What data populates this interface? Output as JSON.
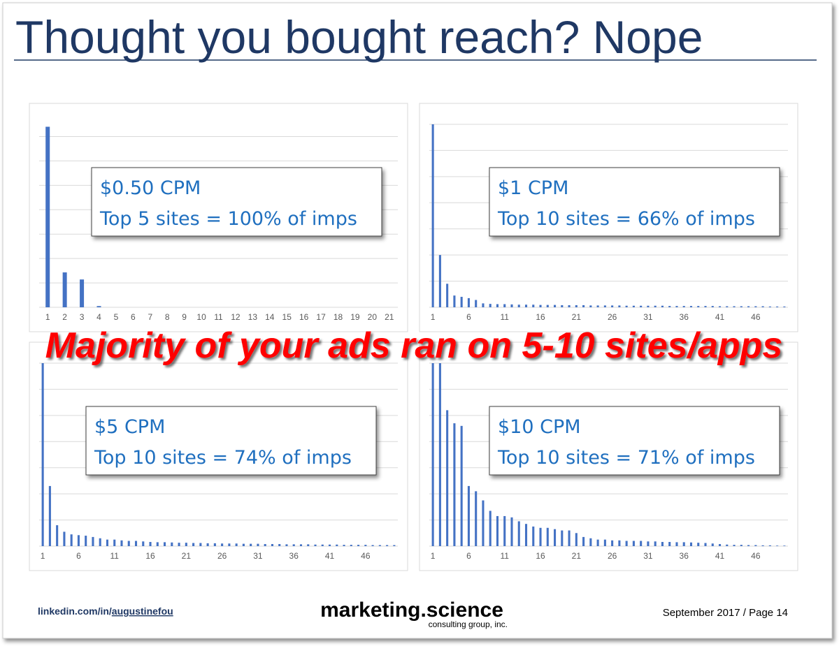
{
  "title": "Thought you bought reach? Nope",
  "banner": "Majority of your ads ran on 5-10 sites/apps",
  "footer": {
    "linkedin_prefix": "linkedin.com/in/",
    "linkedin_handle": "augustinefou",
    "brand": "marketing.science",
    "brand_sub": "consulting group, inc.",
    "page": "September 2017 / Page 14"
  },
  "chart_data": [
    {
      "type": "bar",
      "annotations": [
        "$0.50 CPM",
        "Top 5 sites = 100% of imps"
      ],
      "categories": [
        "1",
        "2",
        "3",
        "4",
        "5",
        "6",
        "7",
        "8",
        "9",
        "10",
        "11",
        "12",
        "13",
        "14",
        "15",
        "16",
        "17",
        "18",
        "19",
        "20",
        "21"
      ],
      "values": [
        7.4,
        1.43,
        1.14,
        0.05,
        0,
        0,
        0,
        0,
        0,
        0,
        0,
        0,
        0,
        0,
        0,
        0,
        0,
        0,
        0,
        0,
        0
      ],
      "color": "#4472c4",
      "ylim": [
        0,
        7.5
      ],
      "yticks": [
        0,
        1,
        2,
        3,
        4,
        5,
        6,
        7
      ],
      "grid": true
    },
    {
      "type": "bar",
      "annotations": [
        "$1 CPM",
        "Top 10 sites = 66% of imps"
      ],
      "categories": [
        "1",
        null,
        null,
        null,
        null,
        "6",
        null,
        null,
        null,
        null,
        "11",
        null,
        null,
        null,
        null,
        "16",
        null,
        null,
        null,
        null,
        "21",
        null,
        null,
        null,
        null,
        "26",
        null,
        null,
        null,
        null,
        "31",
        null,
        null,
        null,
        null,
        "36",
        null,
        null,
        null,
        null,
        "41",
        null,
        null,
        null,
        null,
        "46",
        null,
        null,
        null,
        null
      ],
      "values": [
        7.0,
        2.0,
        0.9,
        0.45,
        0.4,
        0.35,
        0.28,
        0.15,
        0.13,
        0.12,
        0.12,
        0.11,
        0.1,
        0.1,
        0.1,
        0.09,
        0.09,
        0.09,
        0.08,
        0.08,
        0.08,
        0.08,
        0.07,
        0.07,
        0.07,
        0.07,
        0.07,
        0.06,
        0.06,
        0.06,
        0.06,
        0.06,
        0.06,
        0.05,
        0.05,
        0.05,
        0.05,
        0.05,
        0.05,
        0.05,
        0.04,
        0.04,
        0.04,
        0.04,
        0.04,
        0.04,
        0.04,
        0.03,
        0.03,
        0.03
      ],
      "color": "#4472c4",
      "ylim": [
        0,
        7
      ],
      "yticks": [
        0,
        1,
        2,
        3,
        4,
        5,
        6,
        7
      ],
      "grid": true
    },
    {
      "type": "bar",
      "annotations": [
        "$5 CPM",
        "Top 10 sites = 74% of imps"
      ],
      "categories": [
        "1",
        null,
        null,
        null,
        null,
        "6",
        null,
        null,
        null,
        null,
        "11",
        null,
        null,
        null,
        null,
        "16",
        null,
        null,
        null,
        null,
        "21",
        null,
        null,
        null,
        null,
        "26",
        null,
        null,
        null,
        null,
        "31",
        null,
        null,
        null,
        null,
        "36",
        null,
        null,
        null,
        null,
        "41",
        null,
        null,
        null,
        null,
        "46",
        null,
        null,
        null,
        null
      ],
      "values": [
        7,
        2.3,
        0.8,
        0.55,
        0.45,
        0.42,
        0.4,
        0.35,
        0.3,
        0.25,
        0.25,
        0.22,
        0.2,
        0.2,
        0.18,
        0.16,
        0.15,
        0.15,
        0.14,
        0.13,
        0.13,
        0.12,
        0.12,
        0.11,
        0.11,
        0.1,
        0.1,
        0.1,
        0.09,
        0.09,
        0.09,
        0.08,
        0.08,
        0.08,
        0.07,
        0.07,
        0.07,
        0.07,
        0.06,
        0.06,
        0.06,
        0.06,
        0.05,
        0.05,
        0.05,
        0.05,
        0.04,
        0.04,
        0.04,
        0.04
      ],
      "color": "#4472c4",
      "ylim": [
        0,
        7
      ],
      "yticks": [
        0,
        1,
        2,
        3,
        4,
        5,
        6,
        7
      ],
      "grid": true
    },
    {
      "type": "bar",
      "annotations": [
        "$10 CPM",
        "Top 10 sites = 71% of imps"
      ],
      "categories": [
        "1",
        null,
        null,
        null,
        null,
        "6",
        null,
        null,
        null,
        null,
        "11",
        null,
        null,
        null,
        null,
        "16",
        null,
        null,
        null,
        null,
        "21",
        null,
        null,
        null,
        null,
        "26",
        null,
        null,
        null,
        null,
        "31",
        null,
        null,
        null,
        null,
        "36",
        null,
        null,
        null,
        null,
        "41",
        null,
        null,
        null,
        null,
        "46",
        null,
        null,
        null,
        null
      ],
      "values": [
        7,
        7,
        5.2,
        4.7,
        4.6,
        2.3,
        2.1,
        1.75,
        1.35,
        1.15,
        1.15,
        1.1,
        0.95,
        0.85,
        0.75,
        0.7,
        0.7,
        0.65,
        0.6,
        0.6,
        0.5,
        0.35,
        0.3,
        0.25,
        0.25,
        0.22,
        0.22,
        0.2,
        0.2,
        0.2,
        0.18,
        0.18,
        0.16,
        0.16,
        0.15,
        0.15,
        0.14,
        0.13,
        0.12,
        0.1,
        0.08,
        0.06,
        0.05,
        0.05,
        0.04,
        0.04,
        0.03,
        0.03,
        0.02,
        0.02
      ],
      "color": "#4472c4",
      "ylim": [
        0,
        7
      ],
      "yticks": [
        0,
        1,
        2,
        3,
        4,
        5,
        6,
        7
      ],
      "grid": true
    }
  ]
}
